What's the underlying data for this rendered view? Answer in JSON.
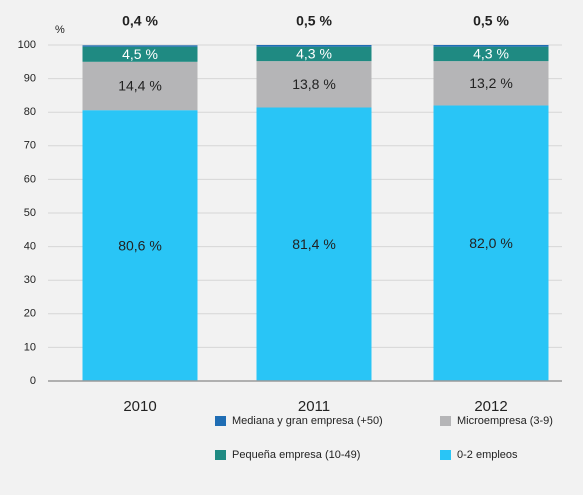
{
  "chart_data": {
    "type": "stacked_bar",
    "y_label": "%",
    "categories": [
      "2010",
      "2011",
      "2012"
    ],
    "series": [
      {
        "name": "0-2 empleos",
        "color": "#29c5f6",
        "values": [
          80.6,
          81.4,
          82.0
        ],
        "value_labels": [
          "80,6 %",
          "81,4 %",
          "82,0 %"
        ]
      },
      {
        "name": "Microempresa (3-9)",
        "color": "#b5b5b7",
        "values": [
          14.4,
          13.8,
          13.2
        ],
        "value_labels": [
          "14,4 %",
          "13,8 %",
          "13,2 %"
        ]
      },
      {
        "name": "Pequeña empresa (10-49)",
        "color": "#1f8a82",
        "values": [
          4.5,
          4.3,
          4.3
        ],
        "value_labels": [
          "4,5 %",
          "4,3 %",
          "4,3 %"
        ]
      },
      {
        "name": "Mediana y gran empresa (+50)",
        "color": "#1f6db4",
        "values": [
          0.4,
          0.5,
          0.5
        ],
        "value_labels": [
          "0,4 %",
          "0,5 %",
          "0,5 %"
        ]
      }
    ],
    "ylim": [
      0,
      100
    ],
    "yticks": [
      0,
      10,
      20,
      30,
      40,
      50,
      60,
      70,
      80,
      90,
      100
    ],
    "grid": true
  }
}
